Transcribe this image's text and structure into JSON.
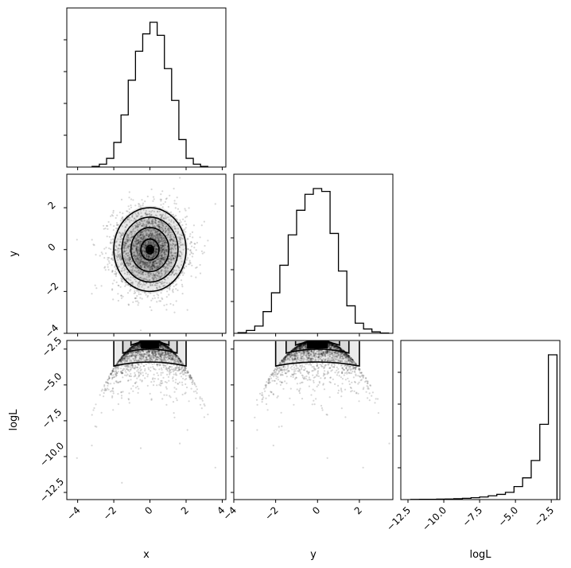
{
  "chart_data": {
    "type": "corner",
    "parameters": [
      "x",
      "y",
      "logL"
    ],
    "axis_labels": {
      "x": "x",
      "y": "y",
      "logL": "logL"
    },
    "ranges": {
      "x": [
        -4.6,
        4.2
      ],
      "y": [
        -4.0,
        3.6
      ],
      "logL": [
        -13.0,
        -1.9
      ]
    },
    "ticks": {
      "x": {
        "values": [
          -4,
          -2,
          0,
          2,
          4
        ],
        "labels": [
          "−4",
          "−2",
          "0",
          "2",
          "4"
        ]
      },
      "y": {
        "values": [
          -4,
          -2,
          0,
          2
        ],
        "labels": [
          "−4",
          "−2",
          "0",
          "2"
        ]
      },
      "logL": {
        "values": [
          -12.5,
          -10.0,
          -7.5,
          -5.0,
          -2.5
        ],
        "labels": [
          "−12.5",
          "−10.0",
          "−7.5",
          "−5.0",
          "−2.5"
        ]
      }
    },
    "histograms": {
      "x": {
        "edges": [
          -3.2,
          -2.8,
          -2.4,
          -2.0,
          -1.6,
          -1.2,
          -0.8,
          -0.4,
          0.0,
          0.4,
          0.8,
          1.2,
          1.6,
          2.0,
          2.4,
          2.8,
          3.2
        ],
        "counts": [
          0.005,
          0.02,
          0.06,
          0.17,
          0.36,
          0.6,
          0.8,
          0.92,
          1.0,
          0.91,
          0.68,
          0.46,
          0.19,
          0.06,
          0.02,
          0.005
        ]
      },
      "y": {
        "edges": [
          -3.8,
          -3.4,
          -3.0,
          -2.6,
          -2.2,
          -1.8,
          -1.4,
          -1.0,
          -0.6,
          -0.2,
          0.2,
          0.6,
          1.0,
          1.4,
          1.8,
          2.2,
          2.6,
          3.0,
          3.4
        ],
        "counts": [
          0.005,
          0.02,
          0.05,
          0.15,
          0.28,
          0.47,
          0.68,
          0.85,
          0.96,
          1.0,
          0.98,
          0.69,
          0.43,
          0.19,
          0.07,
          0.03,
          0.01,
          0.002
        ]
      },
      "logL": {
        "edges": [
          -12.3,
          -11.7,
          -11.1,
          -10.5,
          -9.9,
          -9.3,
          -8.7,
          -8.1,
          -7.5,
          -6.9,
          -6.3,
          -5.7,
          -5.1,
          -4.5,
          -3.9,
          -3.3,
          -2.7,
          -2.1
        ],
        "counts": [
          0.001,
          0.002,
          0.002,
          0.003,
          0.004,
          0.006,
          0.009,
          0.013,
          0.018,
          0.026,
          0.036,
          0.05,
          0.09,
          0.15,
          0.27,
          0.52,
          1.0
        ]
      }
    }
  }
}
